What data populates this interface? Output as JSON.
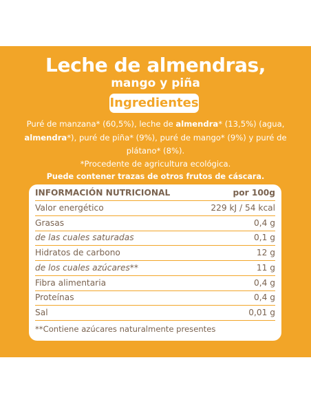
{
  "product": {
    "title": "Leche de almendras,",
    "subtitle": "mango y piña"
  },
  "ingredients": {
    "heading": "Ingredientes",
    "segments": [
      {
        "text": "Puré de manzana* (60,5%), leche de ",
        "bold": false
      },
      {
        "text": "almendra",
        "bold": true
      },
      {
        "text": "* (13,5%) (agua, ",
        "bold": false
      },
      {
        "text": "almendra",
        "bold": true
      },
      {
        "text": "*), puré de piña* (9%), puré de mango* (9%) y puré de plátano* (8%).",
        "bold": false
      }
    ],
    "organic_note": "*Procedente de agricultura ecológica.",
    "traces_note": "Puede contener trazas de otros frutos de cáscara."
  },
  "nutrition": {
    "header": {
      "label": "INFORMACIÓN NUTRICIONAL",
      "value": "por 100g"
    },
    "rows": [
      {
        "label": "Valor energético",
        "value": "229 kJ / 54 kcal",
        "italic": false
      },
      {
        "label": "Grasas",
        "value": "0,4 g",
        "italic": false
      },
      {
        "label": "de las cuales saturadas",
        "value": "0,1 g",
        "italic": true
      },
      {
        "label": "Hidratos de carbono",
        "value": "12 g",
        "italic": false
      },
      {
        "label": "de los cuales azúcares**",
        "value": "11 g",
        "italic": true
      },
      {
        "label": "Fibra alimentaria",
        "value": "0,4 g",
        "italic": false
      },
      {
        "label": "Proteínas",
        "value": "0,4 g",
        "italic": false
      },
      {
        "label": "Sal",
        "value": "0,01 g",
        "italic": false
      }
    ],
    "footnote": "**Contiene azúcares naturalmente presentes"
  },
  "colors": {
    "panel": "#f2a528",
    "text_on_panel": "#ffffff",
    "table_text": "#7a6350"
  }
}
